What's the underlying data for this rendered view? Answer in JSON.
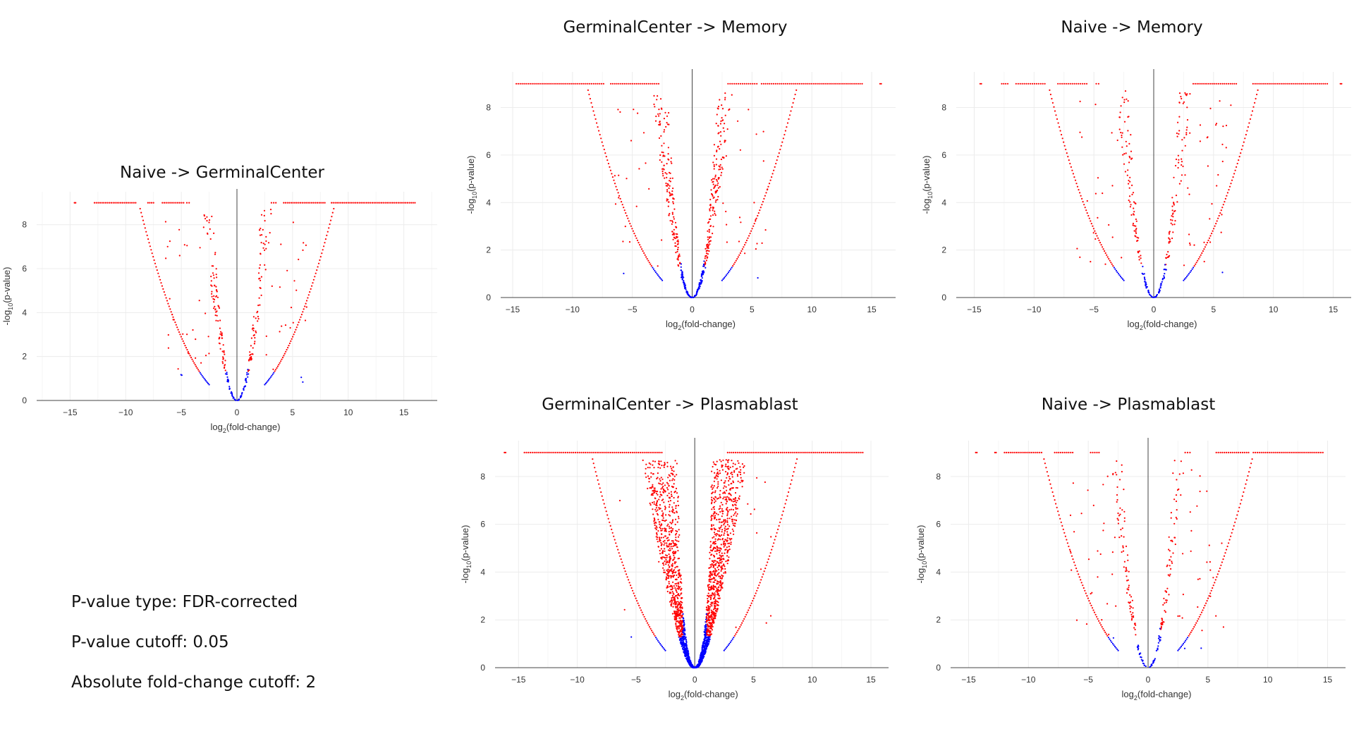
{
  "notes": {
    "pvalue_type": "P-value type: FDR-corrected",
    "pvalue_cutoff": "P-value cutoff: 0.05",
    "fc_cutoff": "Absolute fold-change cutoff: 2"
  },
  "colors": {
    "significant": "#ff0000",
    "not_significant": "#0000ff",
    "grid": "#ececec",
    "axis": "#444444"
  },
  "chart_data": [
    {
      "id": "naive-gc",
      "type": "scatter",
      "title": "Naive -> GerminalCenter",
      "xlabel_main": "log",
      "xlabel_sub": "2",
      "xlabel_rest": "(fold-change)",
      "ylabel_main": "-log",
      "ylabel_sub": "10",
      "ylabel_rest": "(p-value)",
      "xlim": [
        -18,
        18
      ],
      "ylim": [
        0,
        9.5
      ],
      "x_ticks": [
        -15,
        -10,
        -5,
        0,
        5,
        10,
        15
      ],
      "y_ticks": [
        0,
        2,
        4,
        6,
        8
      ],
      "cap": 9,
      "v_outer": 8.7,
      "v_inner": 2.0,
      "cap_segments": [
        [
          -14.6,
          -14.5
        ],
        [
          -12.8,
          -9.1
        ],
        [
          -8.0,
          -7.5
        ],
        [
          -6.7,
          -4.8
        ],
        [
          -4.5,
          -4.3
        ],
        [
          3.1,
          3.5
        ],
        [
          4.2,
          7.9
        ],
        [
          8.5,
          16.0
        ]
      ],
      "inner_density": 0.08
    },
    {
      "id": "gc-memory",
      "type": "scatter",
      "title": "GerminalCenter -> Memory",
      "xlabel_main": "log",
      "xlabel_sub": "2",
      "xlabel_rest": "(fold-change)",
      "ylabel_main": "-log",
      "ylabel_sub": "10",
      "ylabel_rest": "(p-value)",
      "xlim": [
        -16,
        17
      ],
      "ylim": [
        0,
        9.5
      ],
      "x_ticks": [
        -15,
        -10,
        -5,
        0,
        5,
        10,
        15
      ],
      "y_ticks": [
        0,
        2,
        4,
        6,
        8
      ],
      "cap": 9,
      "v_outer": 8.7,
      "v_inner": 2.0,
      "cap_segments": [
        [
          -14.7,
          -7.4
        ],
        [
          -6.8,
          -2.8
        ],
        [
          3.0,
          5.4
        ],
        [
          5.8,
          14.2
        ],
        [
          15.7,
          15.8
        ]
      ],
      "inner_density": 0.18
    },
    {
      "id": "naive-memory",
      "type": "scatter",
      "title": "Naive -> Memory",
      "xlabel_main": "log",
      "xlabel_sub": "2",
      "xlabel_rest": "(fold-change)",
      "ylabel_main": "-log",
      "ylabel_sub": "10",
      "ylabel_rest": "(p-value)",
      "xlim": [
        -16.5,
        16.5
      ],
      "ylim": [
        0,
        9.5
      ],
      "x_ticks": [
        -15,
        -10,
        -5,
        0,
        5,
        10,
        15
      ],
      "y_ticks": [
        0,
        2,
        4,
        6,
        8
      ],
      "cap": 9,
      "v_outer": 8.7,
      "v_inner": 2.0,
      "cap_segments": [
        [
          -14.5,
          -14.4
        ],
        [
          -12.7,
          -12.2
        ],
        [
          -11.5,
          -9.1
        ],
        [
          -8.0,
          -5.6
        ],
        [
          -4.8,
          -4.6
        ],
        [
          3.3,
          6.9
        ],
        [
          8.3,
          14.5
        ],
        [
          15.6,
          15.7
        ]
      ],
      "inner_density": 0.08
    },
    {
      "id": "gc-plasmablast",
      "type": "scatter",
      "title": "GerminalCenter -> Plasmablast",
      "xlabel_main": "log",
      "xlabel_sub": "2",
      "xlabel_rest": "(fold-change)",
      "ylabel_main": "-log",
      "ylabel_sub": "10",
      "ylabel_rest": "(p-value)",
      "xlim": [
        -17,
        16.5
      ],
      "ylim": [
        0,
        9.5
      ],
      "x_ticks": [
        -15,
        -10,
        -5,
        0,
        5,
        10,
        15
      ],
      "y_ticks": [
        0,
        2,
        4,
        6,
        8
      ],
      "cap": 9,
      "v_outer": 8.7,
      "v_inner": 2.0,
      "cap_segments": [
        [
          -16.2,
          -16.1
        ],
        [
          -14.5,
          -2.8
        ],
        [
          2.8,
          14.3
        ]
      ],
      "inner_density": 1.0
    },
    {
      "id": "naive-plasmablast",
      "type": "scatter",
      "title": "Naive -> Plasmablast",
      "xlabel_main": "log",
      "xlabel_sub": "2",
      "xlabel_rest": "(fold-change)",
      "ylabel_main": "-log",
      "ylabel_sub": "10",
      "ylabel_rest": "(p-value)",
      "xlim": [
        -16.5,
        16.5
      ],
      "ylim": [
        0,
        9.5
      ],
      "x_ticks": [
        -15,
        -10,
        -5,
        0,
        5,
        10,
        15
      ],
      "y_ticks": [
        0,
        2,
        4,
        6,
        8
      ],
      "cap": 9,
      "v_outer": 8.7,
      "v_inner": 2.0,
      "cap_segments": [
        [
          -14.4,
          -14.3
        ],
        [
          -12.8,
          -12.7
        ],
        [
          -12.0,
          -8.9
        ],
        [
          -7.8,
          -6.3
        ],
        [
          -4.8,
          -4.1
        ],
        [
          3.1,
          3.5
        ],
        [
          5.7,
          8.4
        ],
        [
          8.8,
          14.6
        ]
      ],
      "inner_density": 0.06
    }
  ]
}
